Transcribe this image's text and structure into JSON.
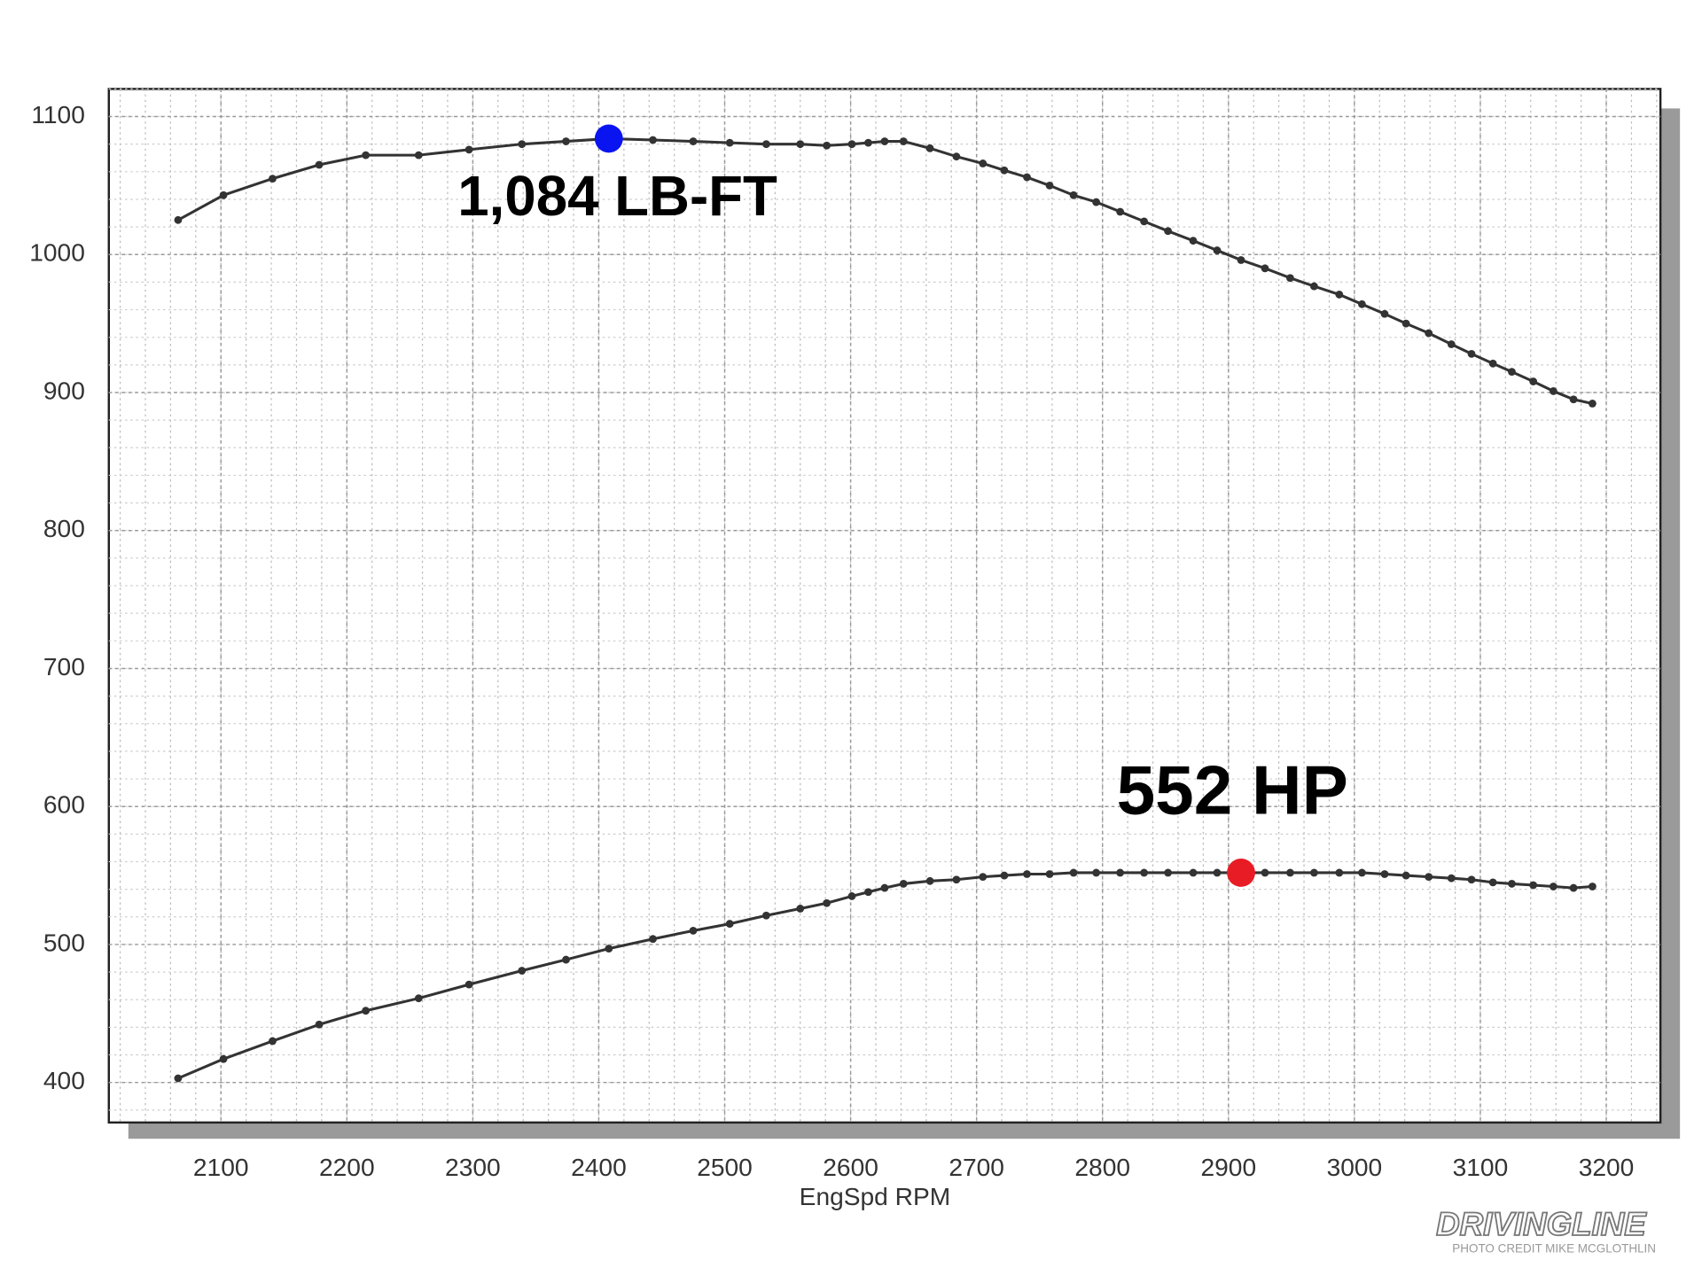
{
  "chart_data": {
    "type": "line",
    "x_label": "EngSpd  RPM",
    "x": [
      2066,
      2102,
      2141,
      2178,
      2215,
      2257,
      2297,
      2339,
      2374,
      2408,
      2443,
      2475,
      2504,
      2533,
      2560,
      2581,
      2601,
      2614,
      2627,
      2642,
      2663,
      2684,
      2705,
      2722,
      2740,
      2758,
      2777,
      2795,
      2814,
      2833,
      2852,
      2872,
      2891,
      2910,
      2929,
      2949,
      2968,
      2988,
      3006,
      3024,
      3041,
      3059,
      3077,
      3093,
      3110,
      3125,
      3142,
      3158,
      3174,
      3189
    ],
    "series": [
      {
        "color": "#333333",
        "highlight_index": 9,
        "highlight_color": "#0a14f0",
        "annotation": "1,084 LB-FT",
        "values": [
          1025,
          1043,
          1055,
          1065,
          1072,
          1072,
          1076,
          1080,
          1082,
          1084,
          1083,
          1082,
          1081,
          1080,
          1080,
          1079,
          1080,
          1081,
          1082,
          1082,
          1077,
          1071,
          1066,
          1061,
          1056,
          1050,
          1043,
          1038,
          1031,
          1024,
          1017,
          1010,
          1003,
          996,
          990,
          983,
          977,
          971,
          964,
          957,
          950,
          943,
          935,
          928,
          921,
          915,
          908,
          901,
          895,
          892
        ]
      },
      {
        "color": "#333333",
        "highlight_index": 33,
        "highlight_color": "#e81c24",
        "annotation": "552 HP",
        "values": [
          403,
          417,
          430,
          442,
          452,
          461,
          471,
          481,
          489,
          497,
          504,
          510,
          515,
          521,
          526,
          530,
          535,
          538,
          541,
          544,
          546,
          547,
          549,
          550,
          551,
          551,
          552,
          552,
          552,
          552,
          552,
          552,
          552,
          552,
          552,
          552,
          552,
          552,
          552,
          551,
          550,
          549,
          548,
          547,
          545,
          544,
          543,
          542,
          541,
          542
        ]
      }
    ],
    "xlim": [
      2011,
      3243
    ],
    "ylim": [
      371,
      1120
    ],
    "xticks": [
      2100,
      2200,
      2300,
      2400,
      2500,
      2600,
      2700,
      2800,
      2900,
      3000,
      3100,
      3200
    ],
    "yticks": [
      400,
      500,
      600,
      700,
      800,
      900,
      1000,
      1100
    ],
    "grid": true,
    "minor_grid": {
      "x": 20,
      "y": 20
    },
    "watermark": "DRIVINGLINE",
    "credit": "PHOTO CREDIT MIKE MCGLOTHLIN"
  }
}
